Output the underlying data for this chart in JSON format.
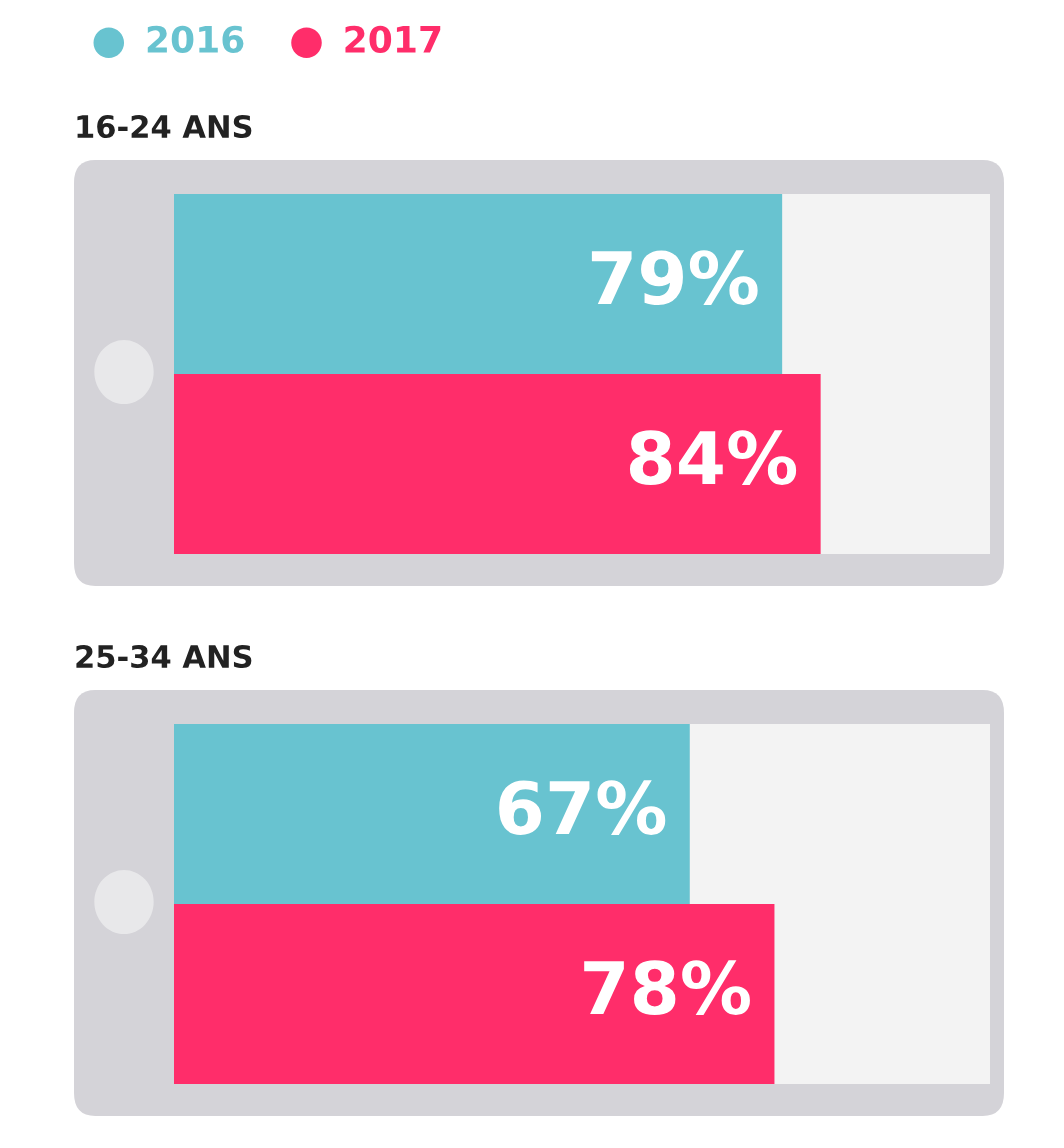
{
  "chart_data": [
    {
      "type": "bar",
      "orientation": "horizontal",
      "title": "16-24 ANS",
      "categories": [
        null
      ],
      "xlim": [
        0,
        106
      ],
      "tick_labels": false,
      "grid": false,
      "legend": "top left",
      "series": [
        {
          "name": "2016",
          "color": "#68c3d0",
          "values": [
            79
          ],
          "value_labels": [
            "79%"
          ]
        },
        {
          "name": "2017",
          "color": "#ff2d6a",
          "values": [
            84
          ],
          "value_labels": [
            "84%"
          ]
        }
      ]
    },
    {
      "type": "bar",
      "orientation": "horizontal",
      "title": "25-34 ANS",
      "categories": [
        null
      ],
      "xlim": [
        0,
        106
      ],
      "tick_labels": false,
      "grid": false,
      "legend": false,
      "series": [
        {
          "color": "#68c3d0",
          "values": [
            67
          ],
          "value_labels": [
            "67%"
          ]
        },
        {
          "color": "#ff2d6a",
          "values": [
            78
          ],
          "value_labels": [
            "78%"
          ]
        }
      ]
    }
  ]
}
